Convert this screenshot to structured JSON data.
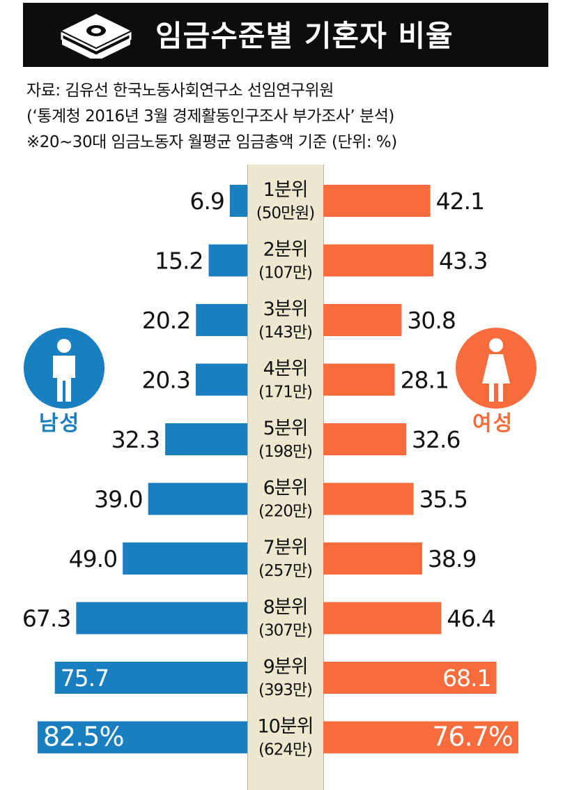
{
  "title": "임금수준별 기혼자 비율",
  "source_lines": [
    "자료: 김유선 한국노동사회연구소 선임연구위원",
    "(‘통계청 2016년 3월 경제활동인구조사 부가조사’ 분석)",
    "※20~30대 임금노동자 월평균 임금총액 기준 (단위: %)"
  ],
  "legend": {
    "male": "남성",
    "female": "여성"
  },
  "colors": {
    "male": "#1a7fc1",
    "female": "#f76b3c",
    "band": "#ede7cf",
    "title_bg": "#0d0d0d"
  },
  "icons": {
    "title": "money-stack-icon",
    "male": "man-icon",
    "female": "woman-icon"
  },
  "chart_data": {
    "type": "bar",
    "orientation": "horizontal-back-to-back",
    "categories": [
      "1분위",
      "2분위",
      "3분위",
      "4분위",
      "5분위",
      "6분위",
      "7분위",
      "8분위",
      "9분위",
      "10분위"
    ],
    "wage_labels": [
      "(50만원)",
      "(107만)",
      "(143만)",
      "(171만)",
      "(198만)",
      "(220만)",
      "(257만)",
      "(307만)",
      "(393만)",
      "(624만)"
    ],
    "series": [
      {
        "name": "남성",
        "values": [
          6.9,
          15.2,
          20.2,
          20.3,
          32.3,
          39.0,
          49.0,
          67.3,
          75.7,
          82.5
        ],
        "labels": [
          "6.9",
          "15.2",
          "20.2",
          "20.3",
          "32.3",
          "39.0",
          "49.0",
          "67.3",
          "75.7",
          "82.5%"
        ]
      },
      {
        "name": "여성",
        "values": [
          42.1,
          43.3,
          30.8,
          28.1,
          32.6,
          35.5,
          38.9,
          46.4,
          68.1,
          76.7
        ],
        "labels": [
          "42.1",
          "43.3",
          "30.8",
          "28.1",
          "32.6",
          "35.5",
          "38.9",
          "46.4",
          "68.1",
          "76.7%"
        ]
      }
    ],
    "unit": "%",
    "grid": false
  }
}
